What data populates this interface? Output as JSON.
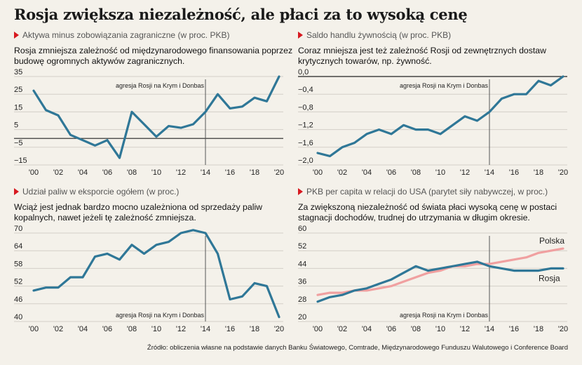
{
  "title": "Rosja zwiększa niezależność, ale płaci za to wysoką cenę",
  "source": "Źródło: obliczenia własne na podstawie danych Banku Światowego, Comtrade, Międzynarodowego Funduszu Walutowego i Conference Board",
  "colors": {
    "line_blue": "#2f7797",
    "line_pink": "#f0a0a0",
    "marker_red": "#d71920",
    "background": "#f4f1ea"
  },
  "chart_data": [
    {
      "type": "line",
      "subtitle": "Aktywa minus zobowiązania zagraniczne (w proc. PKB)",
      "description": "Rosja zmniejsza zależność od międzynarodowego finansowania poprzez budowę ogromnych aktywów zagranicznych.",
      "annotation": "agresja Rosji na Krym i Donbas",
      "annotation_x": 2014,
      "xlim": [
        2000,
        2020
      ],
      "ylim": [
        -15,
        35
      ],
      "yticks": [
        35,
        25,
        15,
        5,
        -5,
        -15
      ],
      "ytick_labels": [
        "35",
        "25",
        "15",
        "5",
        "−5",
        "−15"
      ],
      "reference_line": 0,
      "xticks": [
        2000,
        2002,
        2004,
        2006,
        2008,
        2010,
        2012,
        2014,
        2016,
        2018,
        2020
      ],
      "xtick_labels": [
        "'00",
        "'02",
        "'04",
        "'06",
        "'08",
        "'10",
        "'12",
        "'14",
        "'16",
        "'18",
        "'20"
      ],
      "series": [
        {
          "color": "#2f7797",
          "x": [
            2000,
            2001,
            2002,
            2003,
            2004,
            2005,
            2006,
            2007,
            2008,
            2009,
            2010,
            2011,
            2012,
            2013,
            2014,
            2015,
            2016,
            2017,
            2018,
            2019,
            2020
          ],
          "values": [
            27,
            16,
            13,
            2,
            -1,
            -4,
            -1,
            -11,
            15,
            8,
            1,
            7,
            6,
            8,
            15,
            25,
            17,
            18,
            23,
            21,
            35
          ]
        }
      ]
    },
    {
      "type": "line",
      "subtitle": "Saldo handlu żywnością (w proc. PKB)",
      "description": "Coraz mniejsza jest też zależność Rosji od zewnętrznych dostaw krytycznych towarów, np. żywność.",
      "annotation": "agresja Rosji na Krym i Donbas",
      "annotation_x": 2014,
      "xlim": [
        2000,
        2020
      ],
      "ylim": [
        -2.0,
        0.0
      ],
      "yticks": [
        0.0,
        -0.4,
        -0.8,
        -1.2,
        -1.6,
        -2.0
      ],
      "ytick_labels": [
        "0,0",
        "−0,4",
        "−0,8",
        "−1,2",
        "−1,6",
        "−2,0"
      ],
      "reference_line": 0,
      "xticks": [
        2000,
        2002,
        2004,
        2006,
        2008,
        2010,
        2012,
        2014,
        2016,
        2018,
        2020
      ],
      "xtick_labels": [
        "'00",
        "'02",
        "'04",
        "'06",
        "'08",
        "'10",
        "'12",
        "'14",
        "'16",
        "'18",
        "'20"
      ],
      "series": [
        {
          "color": "#2f7797",
          "x": [
            2000,
            2001,
            2002,
            2003,
            2004,
            2005,
            2006,
            2007,
            2008,
            2009,
            2010,
            2011,
            2012,
            2013,
            2014,
            2015,
            2016,
            2017,
            2018,
            2019,
            2020
          ],
          "values": [
            -1.73,
            -1.8,
            -1.6,
            -1.5,
            -1.3,
            -1.2,
            -1.3,
            -1.1,
            -1.2,
            -1.2,
            -1.3,
            -1.1,
            -0.9,
            -1.0,
            -0.8,
            -0.5,
            -0.4,
            -0.4,
            -0.1,
            -0.2,
            0.0
          ]
        }
      ]
    },
    {
      "type": "line",
      "subtitle": "Udział paliw w eksporcie ogółem (w proc.)",
      "description": "Wciąż jest jednak bardzo mocno uzależniona od sprzedaży paliw kopalnych, nawet jeżeli tę zależność zmniejsza.",
      "annotation": "agresja Rosji na Krym i Donbas",
      "annotation_x": 2014,
      "xlim": [
        2000,
        2020
      ],
      "ylim": [
        40,
        70
      ],
      "yticks": [
        70,
        64,
        58,
        52,
        46,
        40
      ],
      "ytick_labels": [
        "70",
        "64",
        "58",
        "52",
        "46",
        "40"
      ],
      "xticks": [
        2000,
        2002,
        2004,
        2006,
        2008,
        2010,
        2012,
        2014,
        2016,
        2018,
        2020
      ],
      "xtick_labels": [
        "'00",
        "'02",
        "'04",
        "'06",
        "'08",
        "'10",
        "'12",
        "'14",
        "'16",
        "'18",
        "'20"
      ],
      "series": [
        {
          "color": "#2f7797",
          "x": [
            2000,
            2001,
            2002,
            2003,
            2004,
            2005,
            2006,
            2007,
            2008,
            2009,
            2010,
            2011,
            2012,
            2013,
            2014,
            2015,
            2016,
            2017,
            2018,
            2019,
            2020
          ],
          "values": [
            50.5,
            51.5,
            51.5,
            55,
            55,
            62,
            63,
            61,
            66,
            63,
            66,
            67,
            70,
            71,
            70,
            63,
            47.5,
            48.5,
            53,
            52,
            41.5
          ]
        }
      ]
    },
    {
      "type": "line",
      "subtitle": "PKB per capita w relacji do USA (parytet siły nabywczej, w proc.)",
      "description": "Za zwiększoną niezależność od świata płaci wysoką cenę w postaci stagnacji dochodów, trudnej do utrzymania w długim okresie.",
      "annotation": "agresja Rosji na Krym i Donbas",
      "annotation_x": 2014,
      "xlim": [
        2000,
        2020
      ],
      "ylim": [
        20,
        60
      ],
      "yticks": [
        60,
        52,
        44,
        36,
        28,
        20
      ],
      "ytick_labels": [
        "60",
        "52",
        "44",
        "36",
        "28",
        "20"
      ],
      "xticks": [
        2000,
        2002,
        2004,
        2006,
        2008,
        2010,
        2012,
        2014,
        2016,
        2018,
        2020
      ],
      "xtick_labels": [
        "'00",
        "'02",
        "'04",
        "'06",
        "'08",
        "'10",
        "'12",
        "'14",
        "'16",
        "'18",
        "'20"
      ],
      "series": [
        {
          "name": "Polska",
          "color": "#f0a0a0",
          "x": [
            2000,
            2001,
            2002,
            2003,
            2004,
            2005,
            2006,
            2007,
            2008,
            2009,
            2010,
            2011,
            2012,
            2013,
            2014,
            2015,
            2016,
            2017,
            2018,
            2019,
            2020
          ],
          "values": [
            32,
            33,
            33,
            34,
            34,
            35,
            36,
            38,
            40,
            42,
            43,
            45,
            45,
            46,
            46,
            47,
            48,
            49,
            51,
            52,
            53
          ]
        },
        {
          "name": "Rosja",
          "color": "#2f7797",
          "x": [
            2000,
            2001,
            2002,
            2003,
            2004,
            2005,
            2006,
            2007,
            2008,
            2009,
            2010,
            2011,
            2012,
            2013,
            2014,
            2015,
            2016,
            2017,
            2018,
            2019,
            2020
          ],
          "values": [
            29,
            31,
            32,
            34,
            35,
            37,
            39,
            42,
            45,
            43,
            44,
            45,
            46,
            47,
            45,
            44,
            43,
            43,
            43,
            44,
            44
          ]
        }
      ]
    }
  ]
}
